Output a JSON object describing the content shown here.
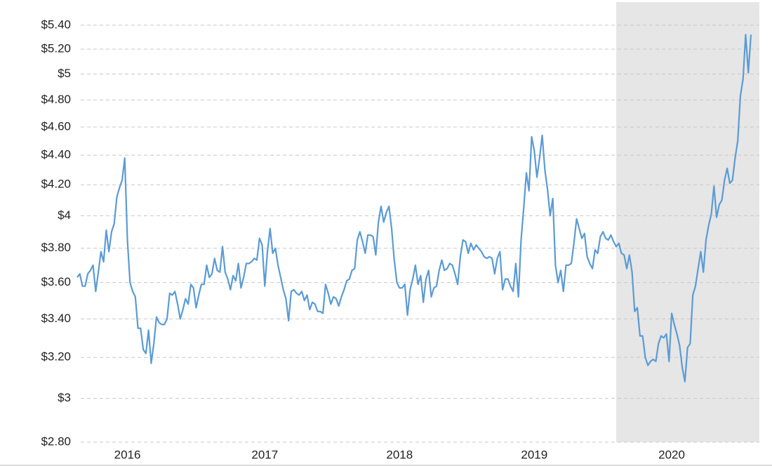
{
  "chart_data": {
    "type": "line",
    "log_scale": true,
    "grid": true,
    "color": "#5b9bd5",
    "ylim": [
      2.8,
      5.6
    ],
    "yticks": [
      {
        "value": 2.8,
        "label": "$2.80"
      },
      {
        "value": 3,
        "label": "$3"
      },
      {
        "value": 3.2,
        "label": "$3.20"
      },
      {
        "value": 3.4,
        "label": "$3.40"
      },
      {
        "value": 3.6,
        "label": "$3.60"
      },
      {
        "value": 3.8,
        "label": "$3.80"
      },
      {
        "value": 4,
        "label": "$4"
      },
      {
        "value": 4.2,
        "label": "$4.20"
      },
      {
        "value": 4.4,
        "label": "$4.40"
      },
      {
        "value": 4.6,
        "label": "$4.60"
      },
      {
        "value": 4.8,
        "label": "$4.80"
      },
      {
        "value": 5,
        "label": "$5"
      },
      {
        "value": 5.2,
        "label": "$5.20"
      },
      {
        "value": 5.4,
        "label": "$5.40"
      }
    ],
    "categories": [
      null,
      null,
      null,
      null,
      null,
      null,
      null,
      null,
      null,
      null,
      null,
      null,
      null,
      null,
      null,
      null,
      null,
      null,
      null,
      "2016",
      null,
      null,
      null,
      null,
      null,
      null,
      null,
      null,
      null,
      null,
      null,
      null,
      null,
      null,
      null,
      null,
      null,
      null,
      null,
      null,
      null,
      null,
      null,
      null,
      null,
      null,
      null,
      null,
      null,
      null,
      null,
      null,
      null,
      null,
      null,
      null,
      null,
      null,
      null,
      null,
      null,
      null,
      null,
      null,
      null,
      null,
      null,
      null,
      null,
      null,
      null,
      "2017",
      null,
      null,
      null,
      null,
      null,
      null,
      null,
      null,
      null,
      null,
      null,
      null,
      null,
      null,
      null,
      null,
      null,
      null,
      null,
      null,
      null,
      null,
      null,
      null,
      null,
      null,
      null,
      null,
      null,
      null,
      null,
      null,
      null,
      null,
      null,
      null,
      null,
      null,
      null,
      null,
      null,
      null,
      null,
      null,
      null,
      null,
      null,
      null,
      null,
      null,
      "2018",
      null,
      null,
      null,
      null,
      null,
      null,
      null,
      null,
      null,
      null,
      null,
      null,
      null,
      null,
      null,
      null,
      null,
      null,
      null,
      null,
      null,
      null,
      null,
      null,
      null,
      null,
      null,
      null,
      null,
      null,
      null,
      null,
      null,
      null,
      null,
      null,
      null,
      null,
      null,
      null,
      null,
      null,
      null,
      null,
      null,
      null,
      null,
      null,
      null,
      null,
      "2019",
      null,
      null,
      null,
      null,
      null,
      null,
      null,
      null,
      null,
      null,
      null,
      null,
      null,
      null,
      null,
      null,
      null,
      null,
      null,
      null,
      null,
      null,
      null,
      null,
      null,
      null,
      null,
      null,
      null,
      null,
      null,
      null,
      null,
      null,
      null,
      null,
      null,
      null,
      null,
      null,
      null,
      null,
      null,
      null,
      null,
      null,
      null,
      null,
      null,
      null,
      null,
      "2020",
      null,
      null,
      null,
      null,
      null,
      null,
      null,
      null,
      null,
      null,
      null,
      null,
      null,
      null,
      null,
      null,
      null,
      null,
      null,
      null,
      null,
      null,
      null,
      null,
      null,
      null,
      null,
      null,
      null,
      null
    ],
    "values": [
      3.63,
      3.65,
      3.58,
      3.58,
      3.65,
      3.67,
      3.7,
      3.55,
      3.66,
      3.78,
      3.72,
      3.91,
      3.78,
      3.9,
      3.95,
      4.12,
      4.18,
      4.23,
      4.38,
      3.85,
      3.6,
      3.55,
      3.52,
      3.35,
      3.35,
      3.24,
      3.22,
      3.34,
      3.17,
      3.27,
      3.41,
      3.38,
      3.37,
      3.37,
      3.4,
      3.54,
      3.53,
      3.55,
      3.48,
      3.4,
      3.45,
      3.51,
      3.48,
      3.59,
      3.57,
      3.46,
      3.53,
      3.59,
      3.59,
      3.7,
      3.63,
      3.65,
      3.74,
      3.67,
      3.66,
      3.81,
      3.66,
      3.62,
      3.56,
      3.64,
      3.61,
      3.71,
      3.57,
      3.63,
      3.71,
      3.71,
      3.72,
      3.74,
      3.73,
      3.86,
      3.82,
      3.58,
      3.78,
      3.92,
      3.77,
      3.8,
      3.7,
      3.63,
      3.56,
      3.51,
      3.39,
      3.55,
      3.56,
      3.54,
      3.53,
      3.55,
      3.5,
      3.53,
      3.45,
      3.49,
      3.48,
      3.44,
      3.44,
      3.43,
      3.59,
      3.54,
      3.48,
      3.52,
      3.51,
      3.47,
      3.52,
      3.56,
      3.61,
      3.62,
      3.67,
      3.68,
      3.85,
      3.9,
      3.84,
      3.77,
      3.88,
      3.88,
      3.87,
      3.76,
      3.96,
      4.06,
      3.96,
      4.02,
      4.06,
      3.92,
      3.73,
      3.6,
      3.57,
      3.57,
      3.59,
      3.42,
      3.56,
      3.62,
      3.7,
      3.59,
      3.64,
      3.49,
      3.62,
      3.67,
      3.52,
      3.57,
      3.58,
      3.67,
      3.73,
      3.67,
      3.68,
      3.71,
      3.7,
      3.65,
      3.59,
      3.75,
      3.85,
      3.84,
      3.77,
      3.83,
      3.79,
      3.82,
      3.8,
      3.78,
      3.75,
      3.74,
      3.75,
      3.74,
      3.65,
      3.74,
      3.78,
      3.56,
      3.62,
      3.62,
      3.58,
      3.55,
      3.71,
      3.52,
      3.85,
      4.05,
      4.28,
      4.16,
      4.53,
      4.43,
      4.25,
      4.38,
      4.54,
      4.3,
      4.17,
      4.0,
      4.11,
      3.7,
      3.6,
      3.67,
      3.55,
      3.7,
      3.7,
      3.71,
      3.83,
      3.98,
      3.92,
      3.86,
      3.89,
      3.75,
      3.71,
      3.68,
      3.79,
      3.77,
      3.87,
      3.9,
      3.86,
      3.85,
      3.88,
      3.84,
      3.81,
      3.83,
      3.77,
      3.76,
      3.68,
      3.76,
      3.66,
      3.44,
      3.46,
      3.31,
      3.31,
      3.2,
      3.16,
      3.18,
      3.19,
      3.18,
      3.27,
      3.31,
      3.3,
      3.32,
      3.18,
      3.43,
      3.37,
      3.32,
      3.26,
      3.15,
      3.08,
      3.25,
      3.27,
      3.53,
      3.58,
      3.68,
      3.78,
      3.66,
      3.85,
      3.94,
      4.01,
      4.19,
      3.99,
      4.07,
      4.1,
      4.23,
      4.31,
      4.21,
      4.23,
      4.38,
      4.5,
      4.83,
      4.96,
      5.32,
      5.01,
      5.32
    ]
  }
}
